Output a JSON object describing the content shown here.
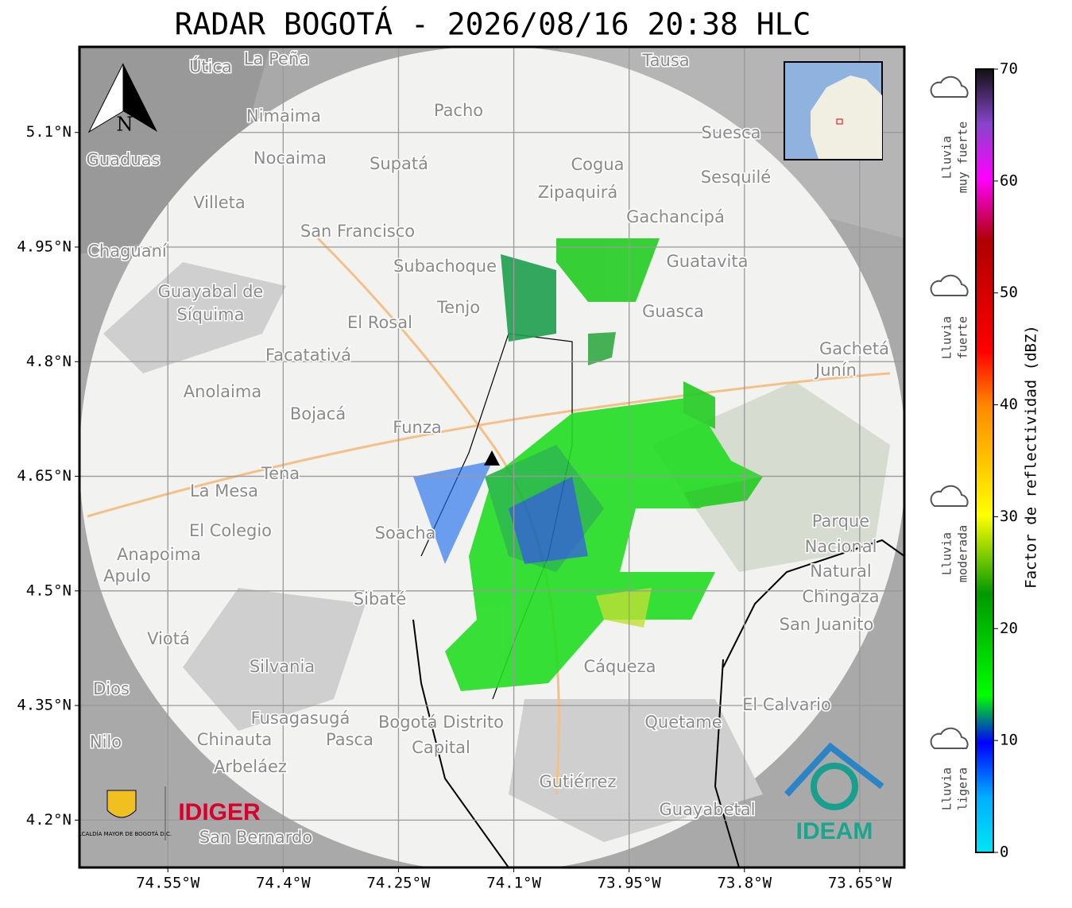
{
  "title": "RADAR BOGOTÁ - 2026/08/16 20:38 HLC",
  "map": {
    "xlim": [
      -74.665,
      -73.592
    ],
    "ylim": [
      4.138,
      5.212
    ],
    "xticks": [
      {
        "value": -74.55,
        "label": "74.55°W"
      },
      {
        "value": -74.4,
        "label": "74.4°W"
      },
      {
        "value": -74.25,
        "label": "74.25°W"
      },
      {
        "value": -74.1,
        "label": "74.1°W"
      },
      {
        "value": -73.95,
        "label": "73.95°W"
      },
      {
        "value": -73.8,
        "label": "73.8°W"
      },
      {
        "value": -73.65,
        "label": "73.65°W"
      }
    ],
    "yticks": [
      {
        "value": 4.2,
        "label": "4.2°N"
      },
      {
        "value": 4.35,
        "label": "4.35°N"
      },
      {
        "value": 4.5,
        "label": "4.5°N"
      },
      {
        "value": 4.65,
        "label": "4.65°N"
      },
      {
        "value": 4.8,
        "label": "4.8°N"
      },
      {
        "value": 4.95,
        "label": "4.95°N"
      },
      {
        "value": 5.1,
        "label": "5.1°N"
      }
    ],
    "grid": true,
    "north_label": "N",
    "places": [
      "La Peña",
      "Útica",
      "Tausa",
      "Pacho",
      "Nimaima",
      "Guaduas",
      "Nocaima",
      "Supatá",
      "Cogua",
      "Suesca",
      "Sesquilé",
      "Zipaquirá",
      "Villeta",
      "Gachancipá",
      "San Francisco",
      "Chaguaní",
      "Subachoque",
      "Guatavita",
      "Guayabal de",
      "Síquima",
      "Tenjo",
      "Guasca",
      "El Rosal",
      "Facatativá",
      "Gachetá",
      "Junín",
      "Anolaima",
      "Bojacá",
      "Funza",
      "Tena",
      "La Mesa",
      "Soacha",
      "El Colegio",
      "Parque",
      "Nacional",
      "Natural",
      "Chingaza",
      "Anapoima",
      "Apulo",
      "Sibaté",
      "San Juanito",
      "Viotá",
      "Silvania",
      "Cáqueza",
      "Dios",
      "El Calvario",
      "Fusagasugá",
      "Bogotá Distrito",
      "Capital",
      "Quetame",
      "Nilo",
      "Chinauta",
      "Pasca",
      "Arbeláez",
      "Gutiérrez",
      "Guayabetal",
      "San Bernardo"
    ]
  },
  "logos": {
    "alcaldia": "ALCALDÍA MAYOR DE BOGOTÁ D.C.",
    "idiger": "IDIGER",
    "ideam": "IDEAM"
  },
  "colorbar": {
    "label": "Factor de reflectividad (dBZ)",
    "lim": [
      0,
      70
    ],
    "ticks": [
      0,
      10,
      20,
      30,
      40,
      50,
      60,
      70
    ]
  },
  "intensity_labels": [
    [
      "Lluvia",
      "muy fuerte"
    ],
    [
      "Lluvia",
      "fuerte"
    ],
    [
      "Lluvia",
      "moderada"
    ],
    [
      "Lluvia",
      "ligera"
    ]
  ]
}
